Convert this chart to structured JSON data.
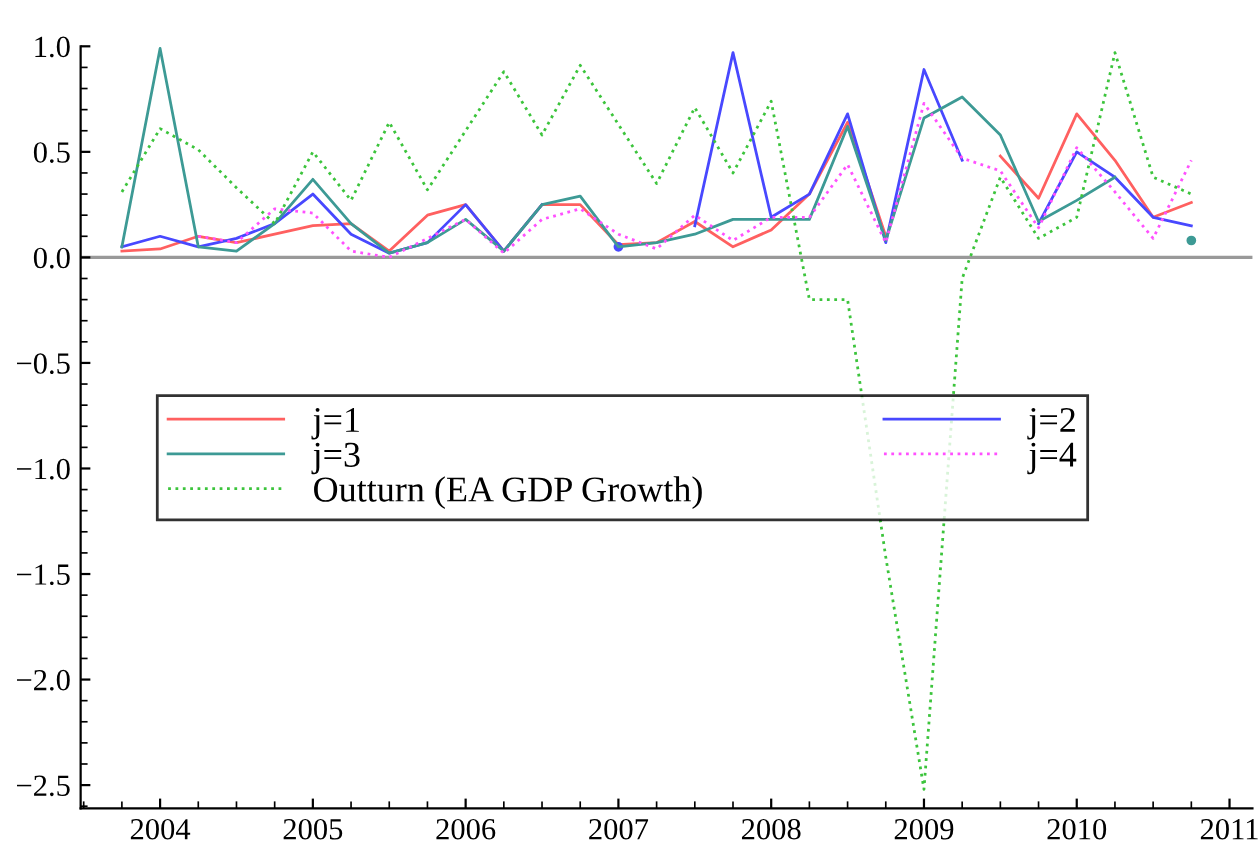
{
  "chart_data": {
    "type": "line",
    "x": [
      2003.75,
      2004.0,
      2004.25,
      2004.5,
      2004.75,
      2005.0,
      2005.25,
      2005.5,
      2005.75,
      2006.0,
      2006.25,
      2006.5,
      2006.75,
      2007.0,
      2007.25,
      2007.5,
      2007.75,
      2008.0,
      2008.25,
      2008.5,
      2008.75,
      2009.0,
      2009.25,
      2009.5,
      2009.75,
      2010.0,
      2010.25,
      2010.5,
      2010.75
    ],
    "series": [
      {
        "name": "j=1",
        "color": "#ff6060",
        "line_style": "solid",
        "values": [
          0.03,
          0.04,
          0.1,
          0.07,
          0.11,
          0.15,
          0.16,
          0.03,
          0.2,
          0.25,
          0.03,
          0.25,
          0.25,
          0.06,
          0.07,
          0.17,
          0.05,
          0.13,
          0.3,
          0.64,
          0.1,
          null,
          null,
          0.48,
          0.28,
          0.68,
          0.46,
          0.19,
          0.26
        ]
      },
      {
        "name": "j=2",
        "color": "#4848ff",
        "line_style": "solid",
        "values": [
          0.05,
          0.1,
          0.05,
          0.09,
          0.16,
          0.3,
          0.11,
          0.02,
          0.07,
          0.25,
          0.03,
          0.25,
          null,
          0.05,
          null,
          0.15,
          0.97,
          0.19,
          0.3,
          0.68,
          0.07,
          0.89,
          0.46,
          null,
          0.16,
          0.5,
          0.38,
          0.19,
          0.15
        ]
      },
      {
        "name": "j=3",
        "color": "#3d9a95",
        "line_style": "solid",
        "values": [
          0.05,
          0.99,
          0.05,
          0.03,
          0.16,
          0.37,
          0.16,
          0.02,
          0.07,
          0.18,
          0.03,
          0.25,
          0.29,
          0.05,
          0.07,
          0.11,
          0.18,
          0.18,
          0.18,
          0.62,
          0.08,
          0.66,
          0.76,
          0.58,
          0.17,
          0.27,
          0.38,
          null,
          0.08
        ]
      },
      {
        "name": "j=4",
        "color": "#ff50ff",
        "line_style": "dotted",
        "values": [
          null,
          null,
          0.1,
          0.07,
          0.23,
          0.21,
          0.03,
          0.0,
          0.09,
          0.18,
          0.02,
          0.18,
          0.23,
          0.11,
          0.04,
          0.2,
          0.08,
          0.19,
          0.19,
          0.44,
          0.07,
          0.73,
          0.47,
          0.41,
          0.14,
          0.52,
          0.31,
          0.09,
          0.46
        ]
      },
      {
        "name": "Outturn (EA GDP Growth)",
        "color": "#3cc43c",
        "line_style": "dotted",
        "values": [
          0.31,
          0.61,
          0.51,
          0.33,
          0.16,
          0.5,
          0.27,
          0.64,
          0.32,
          0.6,
          0.88,
          0.58,
          0.91,
          0.63,
          0.35,
          0.71,
          0.4,
          0.74,
          -0.2,
          -0.2,
          -1.42,
          -2.52,
          -0.1,
          0.38,
          0.09,
          0.19,
          0.97,
          0.38,
          0.3
        ]
      }
    ],
    "xlim": [
      2003.48,
      2011.15
    ],
    "ylim": [
      -2.61,
      1.0
    ],
    "xticks": [
      2004,
      2005,
      2006,
      2007,
      2008,
      2009,
      2010,
      2011
    ],
    "yticks": [
      {
        "value": -2.5,
        "label": "−2.5"
      },
      {
        "value": -2.0,
        "label": "−2.0"
      },
      {
        "value": -1.5,
        "label": "−1.5"
      },
      {
        "value": -1.0,
        "label": "−1.0"
      },
      {
        "value": -0.5,
        "label": "−0.5"
      },
      {
        "value": 0.0,
        "label": "0.0"
      },
      {
        "value": 0.5,
        "label": "0.5"
      },
      {
        "value": 1.0,
        "label": "1.0"
      }
    ],
    "ref_lines": [
      {
        "axis": "y",
        "value": 0.0,
        "color": "#999999"
      }
    ],
    "grid": false,
    "legend": "center left",
    "marker": "none"
  }
}
